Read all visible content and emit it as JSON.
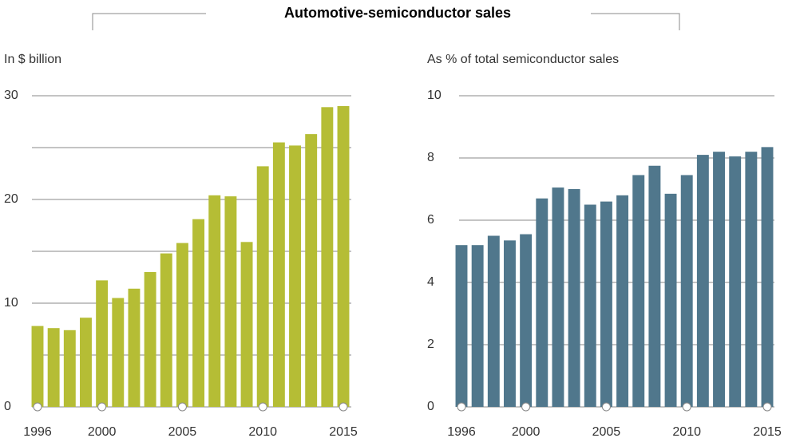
{
  "title": "Automotive-semiconductor sales",
  "chart_data": [
    {
      "type": "bar",
      "ylabel": "In $ billion",
      "color": "#b5bd35",
      "x": [
        1996,
        1997,
        1998,
        1999,
        2000,
        2001,
        2002,
        2003,
        2004,
        2005,
        2006,
        2007,
        2008,
        2009,
        2010,
        2011,
        2012,
        2013,
        2014,
        2015
      ],
      "values": [
        7.8,
        7.6,
        7.4,
        8.6,
        12.2,
        10.5,
        11.4,
        13,
        14.8,
        15.8,
        18.1,
        20.4,
        20.3,
        15.9,
        23.2,
        25.5,
        25.2,
        26.3,
        28.9,
        29
      ],
      "xlim": [
        1996,
        2015
      ],
      "xticks": [
        1996,
        2000,
        2005,
        2010,
        2015
      ],
      "ylim": [
        0,
        30
      ],
      "yticks": [
        0,
        10,
        20,
        30
      ],
      "ygrid": [
        0,
        5,
        10,
        15,
        20,
        25,
        30
      ]
    },
    {
      "type": "bar",
      "ylabel": "As % of total semiconductor sales",
      "color": "#50778c",
      "x": [
        1996,
        1997,
        1998,
        1999,
        2000,
        2001,
        2002,
        2003,
        2004,
        2005,
        2006,
        2007,
        2008,
        2009,
        2010,
        2011,
        2012,
        2013,
        2014,
        2015
      ],
      "values": [
        5.2,
        5.2,
        5.5,
        5.35,
        5.55,
        6.7,
        7.05,
        7.0,
        6.5,
        6.6,
        6.8,
        7.45,
        7.75,
        6.85,
        7.45,
        8.1,
        8.2,
        8.05,
        8.2,
        8.35
      ],
      "xlim": [
        1996,
        2015
      ],
      "xticks": [
        1996,
        2000,
        2005,
        2010,
        2015
      ],
      "ylim": [
        0,
        10
      ],
      "yticks": [
        0,
        2,
        4,
        6,
        8,
        10
      ],
      "ygrid": [
        0,
        2,
        4,
        6,
        8,
        10
      ]
    }
  ]
}
